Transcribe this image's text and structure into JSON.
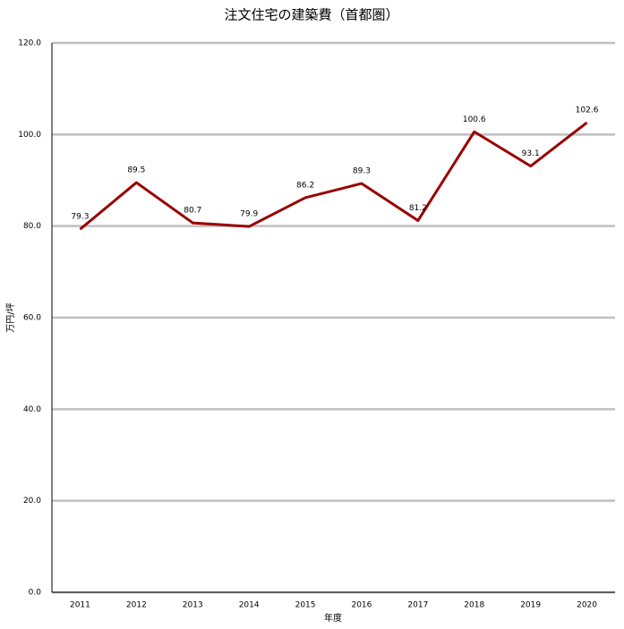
{
  "chart_data": {
    "type": "line",
    "title": "注文住宅の建築費（首都圏）",
    "x_label": "年度",
    "y_label": "万円/坪",
    "categories": [
      "2011",
      "2012",
      "2013",
      "2014",
      "2015",
      "2016",
      "2017",
      "2018",
      "2019",
      "2020"
    ],
    "series": [
      {
        "name": "建築費",
        "color": "#990000",
        "values": [
          79.3,
          89.5,
          80.7,
          79.9,
          86.2,
          89.3,
          81.2,
          100.6,
          93.1,
          102.6
        ]
      }
    ],
    "ylim": [
      0,
      120
    ],
    "yticks": [
      {
        "value": 0,
        "label": "0.0"
      },
      {
        "value": 20,
        "label": "20.0"
      },
      {
        "value": 40,
        "label": "40.0"
      },
      {
        "value": 60,
        "label": "60.0"
      },
      {
        "value": 80,
        "label": "80.0"
      },
      {
        "value": 100,
        "label": "100.0"
      },
      {
        "value": 120,
        "label": "120.0"
      }
    ],
    "grid": true
  }
}
